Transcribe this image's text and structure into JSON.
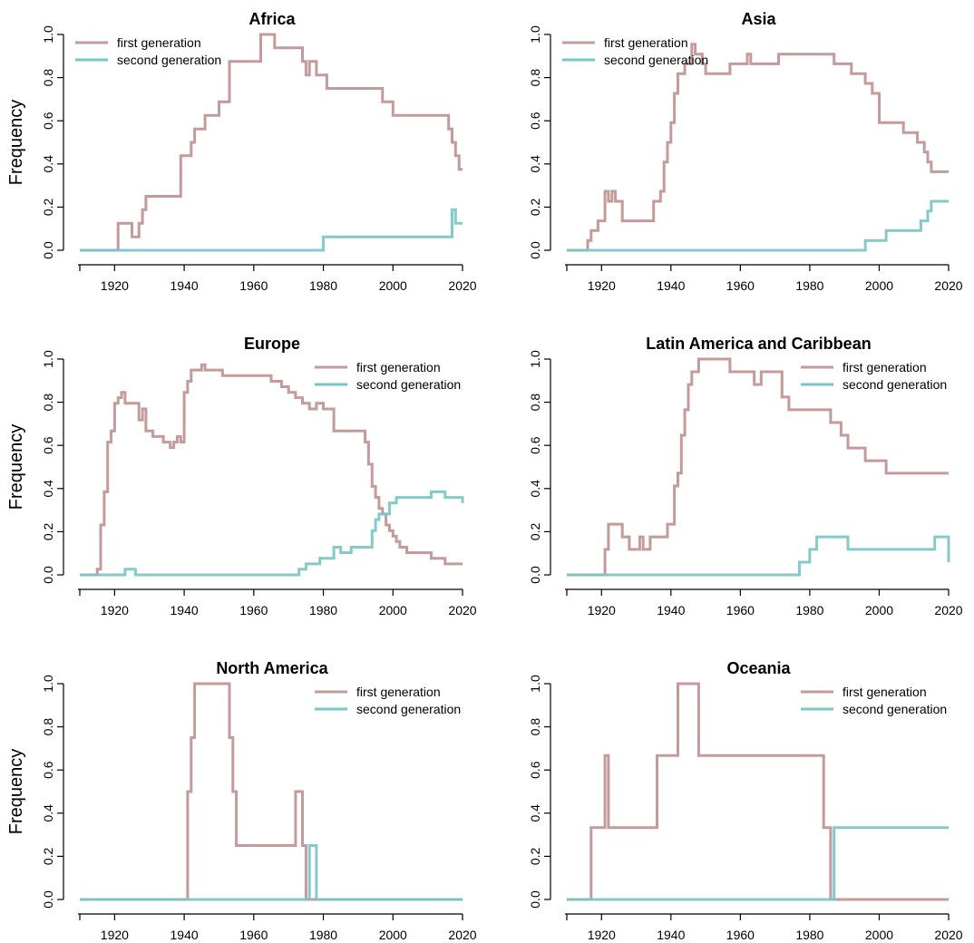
{
  "colors": {
    "first": "#C49A9A",
    "second": "#79C6C6"
  },
  "chart_data": [
    {
      "type": "line",
      "title": "Africa",
      "xlabel": "",
      "ylabel": "Frequency",
      "xlim": [
        1910,
        2020
      ],
      "ylim": [
        0,
        1
      ],
      "x_ticks": [
        1920,
        1940,
        1960,
        1980,
        2000,
        2020
      ],
      "y_ticks": [
        "0.0",
        "0.2",
        "0.4",
        "0.6",
        "0.8",
        "1.0"
      ],
      "legend_position": "top-left",
      "series": [
        {
          "name": "first generation",
          "color_key": "first",
          "step": true,
          "x": [
            1910,
            1921,
            1925,
            1927,
            1928,
            1929,
            1939,
            1941,
            1942,
            1943,
            1946,
            1948,
            1950,
            1953,
            1962,
            1966,
            1974,
            1975,
            1976,
            1978,
            1979,
            1981,
            1997,
            2000,
            2016,
            2017,
            2018,
            2019,
            2020
          ],
          "y": [
            0,
            0.125,
            0.062,
            0.125,
            0.188,
            0.25,
            0.438,
            0.438,
            0.5,
            0.562,
            0.625,
            0.625,
            0.688,
            0.875,
            1.0,
            0.938,
            0.875,
            0.812,
            0.875,
            0.812,
            0.812,
            0.75,
            0.688,
            0.625,
            0.562,
            0.5,
            0.438,
            0.375,
            0.375
          ]
        },
        {
          "name": "second generation",
          "color_key": "second",
          "step": true,
          "x": [
            1910,
            1980,
            2016,
            2017,
            2018,
            2019,
            2020
          ],
          "y": [
            0,
            0.062,
            0.062,
            0.188,
            0.125,
            0.125,
            0.125
          ]
        }
      ]
    },
    {
      "type": "line",
      "title": "Asia",
      "xlabel": "",
      "ylabel": "",
      "xlim": [
        1910,
        2020
      ],
      "ylim": [
        0,
        1
      ],
      "x_ticks": [
        1920,
        1940,
        1960,
        1980,
        2000,
        2020
      ],
      "y_ticks": [
        "0.0",
        "0.2",
        "0.4",
        "0.6",
        "0.8",
        "1.0"
      ],
      "legend_position": "top-left",
      "series": [
        {
          "name": "first generation",
          "color_key": "first",
          "step": true,
          "x": [
            1910,
            1916,
            1917,
            1919,
            1921,
            1922,
            1923,
            1924,
            1926,
            1935,
            1937,
            1938,
            1939,
            1940,
            1941,
            1942,
            1944,
            1946,
            1947,
            1949,
            1950,
            1952,
            1957,
            1962,
            1963,
            1971,
            1987,
            1992,
            1996,
            1998,
            2000,
            2002,
            2007,
            2011,
            2013,
            2014,
            2015,
            2016,
            2017,
            2020
          ],
          "y": [
            0,
            0.045,
            0.091,
            0.136,
            0.273,
            0.227,
            0.273,
            0.227,
            0.136,
            0.227,
            0.273,
            0.409,
            0.5,
            0.591,
            0.727,
            0.818,
            0.864,
            0.955,
            0.909,
            0.864,
            0.818,
            0.818,
            0.864,
            0.909,
            0.864,
            0.909,
            0.864,
            0.818,
            0.773,
            0.727,
            0.591,
            0.591,
            0.545,
            0.5,
            0.455,
            0.409,
            0.364,
            0.364,
            0.364,
            0.364
          ]
        },
        {
          "name": "second generation",
          "color_key": "second",
          "step": true,
          "x": [
            1910,
            1996,
            2002,
            2012,
            2014,
            2015,
            2016,
            2020
          ],
          "y": [
            0,
            0.045,
            0.091,
            0.136,
            0.182,
            0.227,
            0.227,
            0.227
          ]
        }
      ]
    },
    {
      "type": "line",
      "title": "Europe",
      "xlabel": "",
      "ylabel": "Frequency",
      "xlim": [
        1910,
        2020
      ],
      "ylim": [
        0,
        1
      ],
      "x_ticks": [
        1920,
        1940,
        1960,
        1980,
        2000,
        2020
      ],
      "y_ticks": [
        "0.0",
        "0.2",
        "0.4",
        "0.6",
        "0.8",
        "1.0"
      ],
      "legend_position": "top-right",
      "series": [
        {
          "name": "first generation",
          "color_key": "first",
          "step": true,
          "x": [
            1910,
            1915,
            1916,
            1917,
            1918,
            1919,
            1920,
            1921,
            1922,
            1923,
            1927,
            1928,
            1929,
            1931,
            1934,
            1935,
            1936,
            1937,
            1938,
            1939,
            1940,
            1941,
            1942,
            1945,
            1946,
            1951,
            1965,
            1968,
            1970,
            1972,
            1974,
            1976,
            1977,
            1978,
            1980,
            1983,
            1992,
            1993,
            1994,
            1995,
            1996,
            1997,
            1998,
            1999,
            2000,
            2001,
            2002,
            2004,
            2011,
            2015,
            2020
          ],
          "y": [
            0,
            0.026,
            0.231,
            0.385,
            0.615,
            0.667,
            0.795,
            0.821,
            0.846,
            0.795,
            0.718,
            0.769,
            0.667,
            0.641,
            0.615,
            0.615,
            0.59,
            0.615,
            0.641,
            0.615,
            0.846,
            0.897,
            0.949,
            0.974,
            0.949,
            0.923,
            0.897,
            0.872,
            0.846,
            0.821,
            0.795,
            0.769,
            0.769,
            0.795,
            0.769,
            0.667,
            0.615,
            0.513,
            0.41,
            0.359,
            0.308,
            0.282,
            0.231,
            0.205,
            0.179,
            0.154,
            0.128,
            0.103,
            0.077,
            0.051,
            0.051
          ]
        },
        {
          "name": "second generation",
          "color_key": "second",
          "step": true,
          "x": [
            1910,
            1923,
            1926,
            1973,
            1975,
            1979,
            1983,
            1985,
            1988,
            1994,
            1995,
            1996,
            1999,
            2001,
            2011,
            2015,
            2019,
            2020
          ],
          "y": [
            0,
            0.026,
            0,
            0.026,
            0.051,
            0.077,
            0.128,
            0.103,
            0.128,
            0.205,
            0.256,
            0.282,
            0.333,
            0.359,
            0.385,
            0.359,
            0.359,
            0.333
          ]
        }
      ]
    },
    {
      "type": "line",
      "title": "Latin America and Caribbean",
      "xlabel": "",
      "ylabel": "",
      "xlim": [
        1910,
        2020
      ],
      "ylim": [
        0,
        1
      ],
      "x_ticks": [
        1920,
        1940,
        1960,
        1980,
        2000,
        2020
      ],
      "y_ticks": [
        "0.0",
        "0.2",
        "0.4",
        "0.6",
        "0.8",
        "1.0"
      ],
      "legend_position": "top-right",
      "series": [
        {
          "name": "first generation",
          "color_key": "first",
          "step": true,
          "x": [
            1910,
            1921,
            1922,
            1926,
            1928,
            1931,
            1932,
            1934,
            1935,
            1939,
            1941,
            1942,
            1943,
            1944,
            1945,
            1946,
            1948,
            1957,
            1964,
            1966,
            1972,
            1974,
            1986,
            1989,
            1991,
            1996,
            2002,
            2020
          ],
          "y": [
            0,
            0.118,
            0.235,
            0.176,
            0.118,
            0.176,
            0.118,
            0.176,
            0.176,
            0.235,
            0.412,
            0.471,
            0.647,
            0.765,
            0.882,
            0.941,
            1.0,
            0.941,
            0.882,
            0.941,
            0.824,
            0.765,
            0.706,
            0.647,
            0.588,
            0.529,
            0.471,
            0.471
          ]
        },
        {
          "name": "second generation",
          "color_key": "second",
          "step": true,
          "x": [
            1910,
            1977,
            1980,
            1982,
            1991,
            2016,
            2020
          ],
          "y": [
            0,
            0.059,
            0.118,
            0.176,
            0.118,
            0.176,
            0.059
          ]
        }
      ]
    },
    {
      "type": "line",
      "title": "North America",
      "xlabel": "",
      "ylabel": "Frequency",
      "xlim": [
        1910,
        2020
      ],
      "ylim": [
        0,
        1
      ],
      "x_ticks": [
        1920,
        1940,
        1960,
        1980,
        2000,
        2020
      ],
      "y_ticks": [
        "0.0",
        "0.2",
        "0.4",
        "0.6",
        "0.8",
        "1.0"
      ],
      "legend_position": "top-right",
      "series": [
        {
          "name": "first generation",
          "color_key": "first",
          "step": true,
          "x": [
            1910,
            1941,
            1942,
            1943,
            1953,
            1954,
            1955,
            1972,
            1974,
            1975,
            2020
          ],
          "y": [
            0,
            0.5,
            0.75,
            1.0,
            0.75,
            0.5,
            0.25,
            0.5,
            0.25,
            0,
            0
          ]
        },
        {
          "name": "second generation",
          "color_key": "second",
          "step": true,
          "x": [
            1910,
            1976,
            1978,
            2020
          ],
          "y": [
            0,
            0.25,
            0,
            0
          ]
        }
      ]
    },
    {
      "type": "line",
      "title": "Oceania",
      "xlabel": "",
      "ylabel": "",
      "xlim": [
        1910,
        2020
      ],
      "ylim": [
        0,
        1
      ],
      "x_ticks": [
        1920,
        1940,
        1960,
        1980,
        2000,
        2020
      ],
      "y_ticks": [
        "0.0",
        "0.2",
        "0.4",
        "0.6",
        "0.8",
        "1.0"
      ],
      "legend_position": "top-right",
      "series": [
        {
          "name": "first generation",
          "color_key": "first",
          "step": true,
          "x": [
            1910,
            1917,
            1921,
            1922,
            1936,
            1942,
            1948,
            1984,
            1986,
            2020
          ],
          "y": [
            0,
            0.333,
            0.667,
            0.333,
            0.667,
            1.0,
            0.667,
            0.333,
            0,
            0
          ]
        },
        {
          "name": "second generation",
          "color_key": "second",
          "step": true,
          "x": [
            1910,
            1987,
            2020
          ],
          "y": [
            0,
            0.333,
            0.333
          ]
        }
      ]
    }
  ]
}
